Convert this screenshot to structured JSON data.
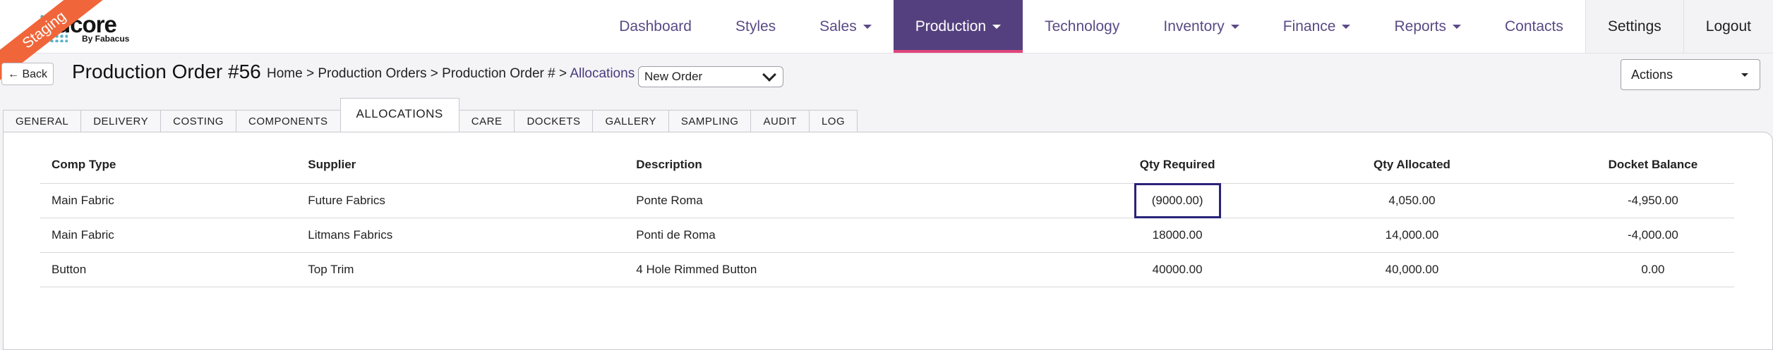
{
  "logo": {
    "text": "dcore",
    "by": "By Fabacus"
  },
  "ribbon": "Staging",
  "nav": [
    {
      "label": "Dashboard",
      "caret": false
    },
    {
      "label": "Styles",
      "caret": false
    },
    {
      "label": "Sales",
      "caret": true
    },
    {
      "label": "Production",
      "caret": true,
      "active": true
    },
    {
      "label": "Technology",
      "caret": false
    },
    {
      "label": "Inventory",
      "caret": true
    },
    {
      "label": "Finance",
      "caret": true
    },
    {
      "label": "Reports",
      "caret": true
    },
    {
      "label": "Contacts",
      "caret": false
    },
    {
      "label": "Settings",
      "caret": false
    },
    {
      "label": "Logout",
      "caret": false
    }
  ],
  "back_label": "Back",
  "page_title": "Production Order #56",
  "breadcrumb": {
    "path": "Home > Production Orders > Production Order # > ",
    "current": "Allocations"
  },
  "order_select": "New Order",
  "actions_select": "Actions",
  "tabs": [
    "GENERAL",
    "DELIVERY",
    "COSTING",
    "COMPONENTS",
    "ALLOCATIONS",
    "CARE",
    "DOCKETS",
    "GALLERY",
    "SAMPLING",
    "AUDIT",
    "LOG"
  ],
  "active_tab": "ALLOCATIONS",
  "table": {
    "headers": [
      "Comp Type",
      "Supplier",
      "Description",
      "Qty Required",
      "Qty Allocated",
      "Docket Balance"
    ],
    "rows": [
      [
        "Main Fabric",
        "Future Fabrics",
        "Ponte Roma",
        "(9000.00)",
        "4,050.00",
        "-4,950.00"
      ],
      [
        "Main Fabric",
        "Litmans Fabrics",
        "Ponti de Roma",
        "18000.00",
        "14,000.00",
        "-4,000.00"
      ],
      [
        "Button",
        "Top Trim",
        "4 Hole Rimmed Button",
        "40000.00",
        "40,000.00",
        "0.00"
      ]
    ]
  },
  "colors": {
    "accent": "#54407e",
    "active_underline": "#e0457b",
    "ribbon": "#f0663a",
    "highlight_border": "#2a2279"
  }
}
